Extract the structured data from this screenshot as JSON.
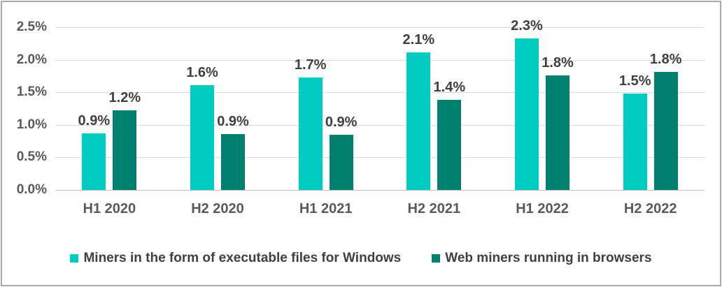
{
  "chart_data": {
    "type": "bar",
    "categories": [
      "H1 2020",
      "H2 2020",
      "H1 2021",
      "H2 2021",
      "H1 2022",
      "H2 2022"
    ],
    "series": [
      {
        "name": "Miners in the form of executable files for Windows",
        "color": "#00CCC1",
        "labels": [
          "0.9%",
          "1.6%",
          "1.7%",
          "2.1%",
          "2.3%",
          "1.5%"
        ],
        "values": [
          0.87,
          1.61,
          1.73,
          2.11,
          2.33,
          1.48
        ]
      },
      {
        "name": "Web miners running in browsers",
        "color": "#008170",
        "labels": [
          "1.2%",
          "0.9%",
          "0.9%",
          "1.4%",
          "1.8%",
          "1.8%"
        ],
        "values": [
          1.22,
          0.86,
          0.85,
          1.38,
          1.76,
          1.81
        ]
      }
    ],
    "y_axis": {
      "min": 0,
      "max": 2.5,
      "step": 0.5,
      "tick_labels": [
        "0.0%",
        "0.5%",
        "1.0%",
        "1.5%",
        "2.0%",
        "2.5%"
      ]
    },
    "xlabel": "",
    "ylabel": "",
    "grid": true,
    "legend_position": "bottom"
  },
  "colors": {
    "series_light": "#00CCC1",
    "series_dark": "#008170",
    "gridline": "#D9D9D9",
    "axis_line": "#BFBFBF",
    "axis_text": "#595959",
    "data_label": "#3F3F3F",
    "legend_text": "#404040",
    "frame_border": "#AAAAAA",
    "background": "#FFFFFF"
  }
}
